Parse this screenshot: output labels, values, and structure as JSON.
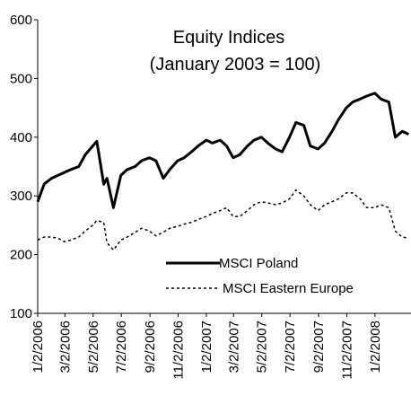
{
  "chart_data": {
    "type": "line",
    "title": "Equity Indices",
    "subtitle": "(January 2003 = 100)",
    "x": [
      "1/2/2006",
      "1/16/2006",
      "2/1/2006",
      "2/15/2006",
      "3/1/2006",
      "3/15/2006",
      "4/1/2006",
      "4/15/2006",
      "5/1/2006",
      "5/10/2006",
      "5/25/2006",
      "6/1/2006",
      "6/15/2006",
      "7/1/2006",
      "7/15/2006",
      "8/1/2006",
      "8/15/2006",
      "9/1/2006",
      "9/15/2006",
      "10/1/2006",
      "10/15/2006",
      "11/1/2006",
      "11/15/2006",
      "12/1/2006",
      "12/15/2006",
      "1/2/2007",
      "1/15/2007",
      "2/1/2007",
      "2/15/2007",
      "3/1/2007",
      "3/15/2007",
      "4/1/2007",
      "4/15/2007",
      "5/1/2007",
      "5/15/2007",
      "6/1/2007",
      "6/15/2007",
      "7/1/2007",
      "7/15/2007",
      "8/1/2007",
      "8/15/2007",
      "9/1/2007",
      "9/15/2007",
      "10/1/2007",
      "10/15/2007",
      "11/1/2007",
      "11/15/2007",
      "12/1/2007",
      "12/15/2007",
      "1/2/2008",
      "1/15/2008",
      "2/1/2008",
      "2/15/2008",
      "3/1/2008",
      "3/15/2008"
    ],
    "series": [
      {
        "name": "MSCI Poland",
        "color": "#000000",
        "dash": false,
        "values": [
          290,
          320,
          330,
          335,
          340,
          345,
          350,
          370,
          385,
          393,
          320,
          330,
          280,
          335,
          345,
          350,
          360,
          365,
          360,
          330,
          345,
          360,
          365,
          375,
          385,
          395,
          390,
          395,
          385,
          365,
          370,
          385,
          395,
          400,
          390,
          380,
          375,
          400,
          425,
          420,
          385,
          380,
          390,
          410,
          430,
          450,
          460,
          465,
          470,
          475,
          465,
          460,
          400,
          410,
          405
        ]
      },
      {
        "name": "MSCI Eastern Europe",
        "color": "#000000",
        "dash": true,
        "values": [
          225,
          230,
          230,
          228,
          222,
          225,
          230,
          240,
          250,
          258,
          255,
          220,
          208,
          225,
          230,
          238,
          245,
          240,
          232,
          238,
          245,
          248,
          252,
          255,
          260,
          265,
          270,
          275,
          280,
          265,
          265,
          275,
          285,
          290,
          288,
          285,
          288,
          295,
          310,
          300,
          285,
          275,
          285,
          290,
          295,
          305,
          305,
          295,
          280,
          280,
          285,
          280,
          240,
          230,
          228
        ]
      }
    ],
    "xlim": [
      "1/2/2006",
      "3/20/2008"
    ],
    "xticks": [
      "1/2/2006",
      "3/2/2006",
      "5/2/2006",
      "7/2/2006",
      "9/2/2006",
      "11/2/2006",
      "1/2/2007",
      "3/2/2007",
      "5/2/2007",
      "7/2/2007",
      "9/2/2007",
      "11/2/2007",
      "1/2/2008"
    ],
    "ylim": [
      100,
      600
    ],
    "yticks": [
      100,
      200,
      300,
      400,
      500,
      600
    ]
  }
}
